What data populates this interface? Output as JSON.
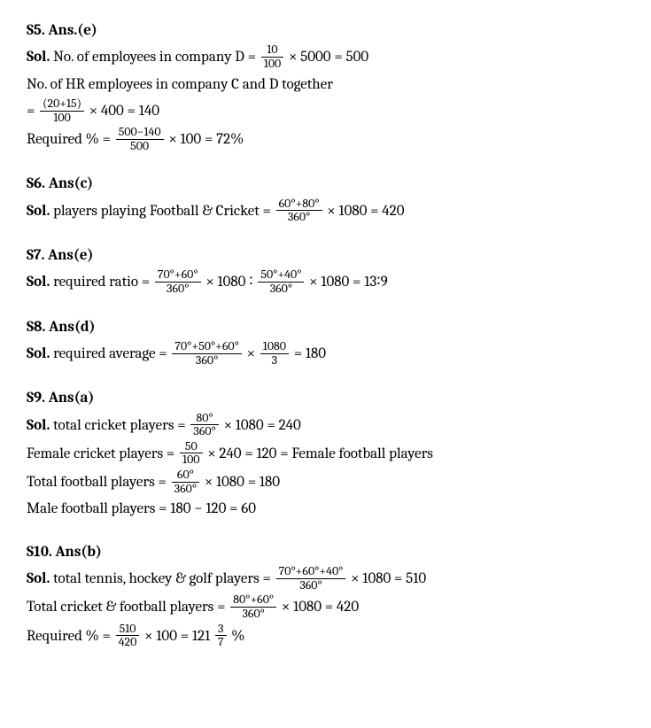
{
  "s5": {
    "heading": "S5. Ans.(e)",
    "sol_label": "Sol.",
    "line1_a": " No. of employees in company D = ",
    "f1_num": "10",
    "f1_den": "100",
    "line1_b": " × 5000 = 500",
    "line2": "No. of HR employees in company C and D together",
    "line3_a": "= ",
    "f2_num": "(20+15)",
    "f2_den": "100",
    "line3_b": " × 400 = 140",
    "line4_a": "Required % = ",
    "f3_num": "500−140",
    "f3_den": "500",
    "line4_b": " × 100 = 72%"
  },
  "s6": {
    "heading": "S6. Ans(c)",
    "sol_label": "Sol.",
    "line1_a": " players playing Football & Cricket = ",
    "f1_num": "60°+80°",
    "f1_den": "360°",
    "line1_b": " × 1080 = 420"
  },
  "s7": {
    "heading": "S7. Ans(e)",
    "sol_label": "Sol.",
    "line1_a": " required ratio = ",
    "f1_num": "70°+60°",
    "f1_den": "360°",
    "line1_b": " × 1080 ∶ ",
    "f2_num": "50°+40°",
    "f2_den": "360°",
    "line1_c": " × 1080 = 13∶9"
  },
  "s8": {
    "heading": "S8. Ans(d)",
    "sol_label": "Sol.",
    "line1_a": " required average = ",
    "f1_num": "70°+50°+60°",
    "f1_den": "360°",
    "line1_b": " × ",
    "f2_num": "1080",
    "f2_den": "3",
    "line1_c": " = 180"
  },
  "s9": {
    "heading": "S9. Ans(a)",
    "sol_label": "Sol.",
    "line1_a": " total cricket players = ",
    "f1_num": "80°",
    "f1_den": "360°",
    "line1_b": " × 1080 = 240",
    "line2_a": "Female cricket players = ",
    "f2_num": "50",
    "f2_den": "100",
    "line2_b": " × 240 = 120 = Female football players",
    "line3_a": "Total football players = ",
    "f3_num": "60°",
    "f3_den": "360°",
    "line3_b": " × 1080 = 180",
    "line4": "Male football players = 180 − 120 = 60"
  },
  "s10": {
    "heading": "S10. Ans(b)",
    "sol_label": "Sol.",
    "line1_a": " total tennis, hockey & golf players = ",
    "f1_num": "70°+60°+40°",
    "f1_den": "360°",
    "line1_b": " × 1080 = 510",
    "line2_a": "Total cricket & football players = ",
    "f2_num": "80°+60°",
    "f2_den": "360°",
    "line2_b": " × 1080 = 420",
    "line3_a": "Required % = ",
    "f3_num": "510",
    "f3_den": "420",
    "line3_b": " × 100 = 121 ",
    "f4_num": "3",
    "f4_den": "7",
    "line3_c": " %"
  }
}
